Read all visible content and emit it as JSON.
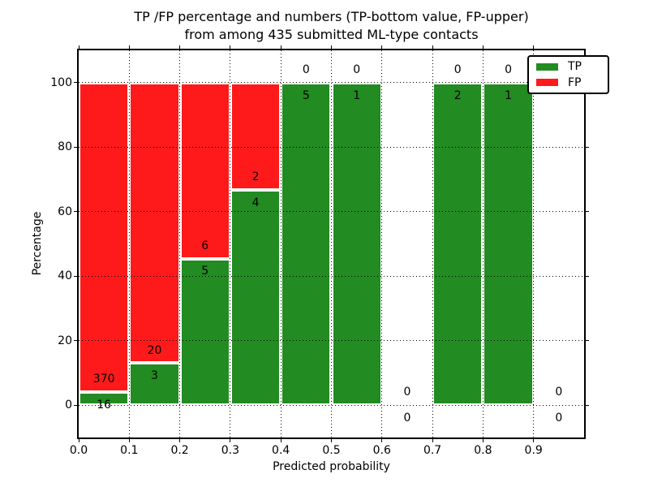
{
  "chart_data": {
    "type": "bar",
    "stacked": true,
    "title": "TP /FP percentage and numbers (TP-bottom value, FP-upper) from among 435 submitted ML-type contacts",
    "title_lines": [
      "TP /FP percentage and numbers (TP-bottom value, FP-upper)",
      "from among 435 submitted ML-type contacts"
    ],
    "xlabel": "Predicted probability",
    "ylabel": "Percentage",
    "xlim": [
      0.0,
      1.0
    ],
    "ylim": [
      -10,
      110
    ],
    "xtick_labels": [
      "0.0",
      "0.1",
      "0.2",
      "0.3",
      "0.4",
      "0.5",
      "0.6",
      "0.7",
      "0.8",
      "0.9"
    ],
    "ytick_values": [
      0,
      20,
      40,
      60,
      80,
      100
    ],
    "grid": "dotted",
    "bar_value_unit": "percent of bin stacked to 100, labels show raw counts (TP below boundary, FP above)",
    "bins": [
      {
        "x_start": 0.0,
        "x_end": 0.1,
        "tp": 16,
        "fp": 370
      },
      {
        "x_start": 0.1,
        "x_end": 0.2,
        "tp": 3,
        "fp": 20
      },
      {
        "x_start": 0.2,
        "x_end": 0.3,
        "tp": 5,
        "fp": 6
      },
      {
        "x_start": 0.3,
        "x_end": 0.4,
        "tp": 4,
        "fp": 2
      },
      {
        "x_start": 0.4,
        "x_end": 0.5,
        "tp": 5,
        "fp": 0
      },
      {
        "x_start": 0.5,
        "x_end": 0.6,
        "tp": 1,
        "fp": 0
      },
      {
        "x_start": 0.6,
        "x_end": 0.7,
        "tp": 0,
        "fp": 0
      },
      {
        "x_start": 0.7,
        "x_end": 0.8,
        "tp": 2,
        "fp": 0
      },
      {
        "x_start": 0.8,
        "x_end": 0.9,
        "tp": 1,
        "fp": 0
      },
      {
        "x_start": 0.9,
        "x_end": 1.0,
        "tp": 0,
        "fp": 0
      }
    ],
    "legend": {
      "position": "upper right",
      "entries": [
        {
          "label": "TP",
          "color": "#228b22"
        },
        {
          "label": "FP",
          "color": "#fe1a1a"
        }
      ]
    }
  }
}
